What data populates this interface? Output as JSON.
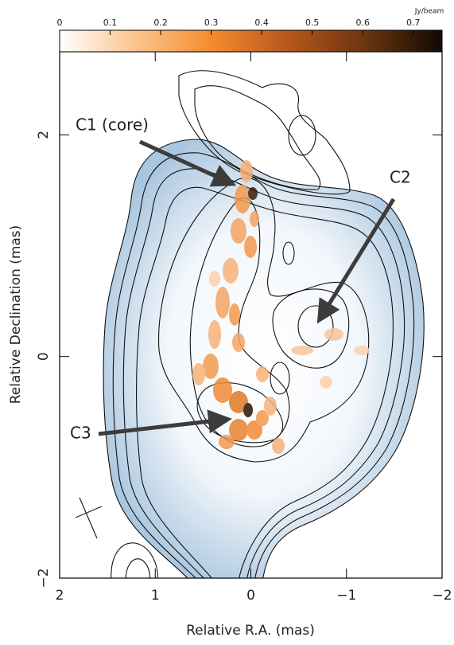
{
  "chart_data": {
    "type": "image",
    "xlabel": "Relative R.A. (mas)",
    "ylabel": "Relative Declination (mas)",
    "xlim": [
      2,
      -2
    ],
    "ylim": [
      -2,
      2.75
    ],
    "xticks": [
      2,
      1,
      0,
      {
        "value": -1,
        "label": "−1"
      },
      {
        "value": -2,
        "label": "−2"
      }
    ],
    "yticks": [
      {
        "value": -2,
        "label": "−2"
      },
      0,
      2
    ],
    "colorbar": {
      "label": "Jy/beam",
      "lim": [
        0,
        0.757
      ],
      "ticks": [
        0,
        0.1,
        0.2,
        0.3,
        0.4,
        0.5,
        0.6,
        0.7
      ],
      "colormap": [
        "#ffffff",
        "#fbc48c",
        "#f58a2e",
        "#b5561c",
        "#6a3510",
        "#120903"
      ]
    },
    "annotations": [
      "C1 (core)",
      "C2",
      "C3"
    ]
  }
}
